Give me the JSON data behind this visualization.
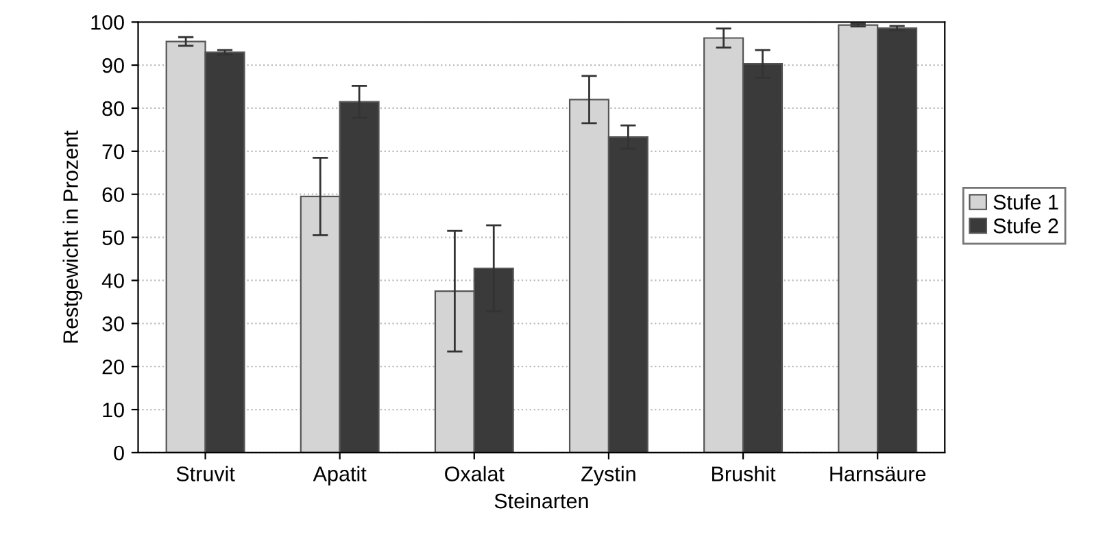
{
  "chart_data": {
    "type": "bar",
    "xlabel": "Steinarten",
    "ylabel": "Restgewicht in Prozent",
    "categories": [
      "Struvit",
      "Apatit",
      "Oxalat",
      "Zystin",
      "Brushit",
      "Harnsäure"
    ],
    "series": [
      {
        "name": "Stufe 1",
        "color": "#d4d4d4",
        "values": [
          95.5,
          59.5,
          37.5,
          82,
          96.3,
          99.3
        ],
        "errors": [
          1,
          9,
          14,
          5.5,
          2.2,
          0.3
        ]
      },
      {
        "name": "Stufe 2",
        "color": "#3a3a3a",
        "values": [
          93,
          81.5,
          42.8,
          73.3,
          90.3,
          98.6
        ],
        "errors": [
          0.5,
          3.7,
          10,
          2.7,
          3.2,
          0.5
        ]
      }
    ],
    "ylim": [
      0,
      100
    ],
    "yticks": [
      0,
      10,
      20,
      30,
      40,
      50,
      60,
      70,
      80,
      90,
      100
    ],
    "grid": "y",
    "legend": "right"
  }
}
